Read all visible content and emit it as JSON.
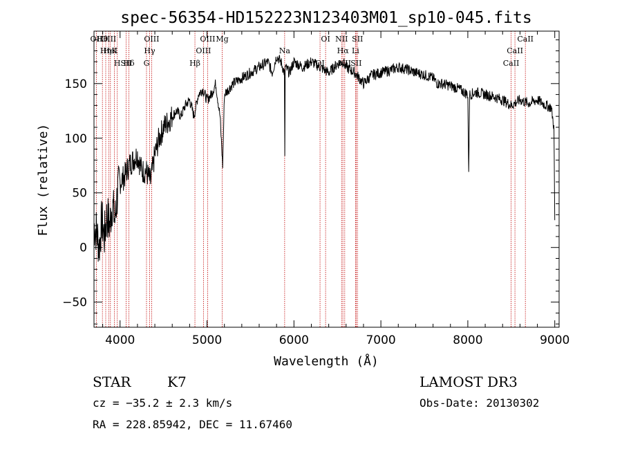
{
  "chart_data": {
    "type": "line",
    "title": "spec-56354-HD152223N123403M01_sp10-045.fits",
    "xlabel": "Wavelength (Å)",
    "ylabel": "Flux (relative)",
    "xlim": [
      3700,
      9050
    ],
    "ylim": [
      -73,
      198
    ],
    "xticks": [
      4000,
      5000,
      6000,
      7000,
      8000,
      9000
    ],
    "xtick_labels": [
      "4000",
      "5000",
      "6000",
      "7000",
      "8000",
      "9000"
    ],
    "yticks": [
      -50,
      0,
      50,
      100,
      150
    ],
    "ytick_labels": [
      "−50",
      "0",
      "50",
      "100",
      "150"
    ],
    "series": [
      {
        "name": "flux",
        "x": [
          3700,
          3730,
          3760,
          3790,
          3820,
          3850,
          3880,
          3910,
          3940,
          3970,
          4000,
          4050,
          4100,
          4150,
          4200,
          4250,
          4300,
          4350,
          4400,
          4450,
          4500,
          4550,
          4600,
          4650,
          4700,
          4750,
          4800,
          4850,
          4900,
          4950,
          5000,
          5050,
          5100,
          5150,
          5180,
          5200,
          5250,
          5300,
          5400,
          5500,
          5600,
          5700,
          5750,
          5800,
          5850,
          5890,
          5895,
          5900,
          5950,
          6000,
          6100,
          6200,
          6300,
          6400,
          6500,
          6563,
          6600,
          6700,
          6800,
          6900,
          7000,
          7100,
          7200,
          7300,
          7400,
          7500,
          7600,
          7650,
          7700,
          7800,
          7900,
          8000,
          8010,
          8020,
          8100,
          8200,
          8300,
          8400,
          8500,
          8600,
          8700,
          8800,
          8900,
          8960,
          8990,
          9000
        ],
        "values": [
          20,
          15,
          0,
          25,
          10,
          30,
          20,
          40,
          25,
          50,
          60,
          65,
          75,
          80,
          85,
          70,
          70,
          60,
          85,
          100,
          110,
          115,
          120,
          125,
          120,
          130,
          135,
          120,
          140,
          145,
          135,
          140,
          150,
          120,
          75,
          140,
          145,
          150,
          155,
          160,
          165,
          170,
          160,
          175,
          170,
          160,
          80,
          165,
          160,
          170,
          165,
          170,
          165,
          160,
          168,
          170,
          165,
          160,
          150,
          158,
          160,
          162,
          165,
          163,
          160,
          158,
          155,
          150,
          150,
          148,
          145,
          140,
          65,
          140,
          142,
          140,
          138,
          135,
          130,
          135,
          132,
          135,
          130,
          128,
          110,
          25
        ]
      }
    ],
    "spectral_lines": [
      {
        "label": "Hθ",
        "x": 3797
      },
      {
        "label": "K",
        "x": 3934
      },
      {
        "label": "Hδ",
        "x": 4102
      },
      {
        "label": "OII",
        "x": 3727
      },
      {
        "label": "HeI",
        "x": 3889
      },
      {
        "label": "SII",
        "x": 4070
      },
      {
        "label": "OIII",
        "x": 3869
      },
      {
        "label": "Hη",
        "x": 3835
      },
      {
        "label": "H",
        "x": 3968
      },
      {
        "label": "OIII",
        "x": 4363
      },
      {
        "label": "Hγ",
        "x": 4340
      },
      {
        "label": "G",
        "x": 4304
      },
      {
        "label": "OIII",
        "x": 5007
      },
      {
        "label": "OIII",
        "x": 4959
      },
      {
        "label": "Hβ",
        "x": 4861
      },
      {
        "label": "Mg",
        "x": 5175
      },
      {
        "label": "Na",
        "x": 5893
      },
      {
        "label": "OI",
        "x": 6300
      },
      {
        "label": "OI",
        "x": 6364
      },
      {
        "label": "Hα",
        "x": 6563
      },
      {
        "label": "SII",
        "x": 6716
      },
      {
        "label": "NII",
        "x": 6548
      },
      {
        "label": "Li",
        "x": 6708
      },
      {
        "label": "NII",
        "x": 6584
      },
      {
        "label": "SII",
        "x": 6731
      },
      {
        "label": "CaII",
        "x": 8542
      },
      {
        "label": "CaII",
        "x": 8498
      },
      {
        "label": "CaII",
        "x": 8662
      }
    ]
  },
  "info": {
    "object_class": "STAR",
    "subclass": "K7",
    "survey": "LAMOST DR3",
    "cz": "cz = −35.2 ± 2.3 km/s",
    "obs_date": "Obs-Date: 20130302",
    "coords": "RA = 228.85942, DEC =  11.67460"
  }
}
